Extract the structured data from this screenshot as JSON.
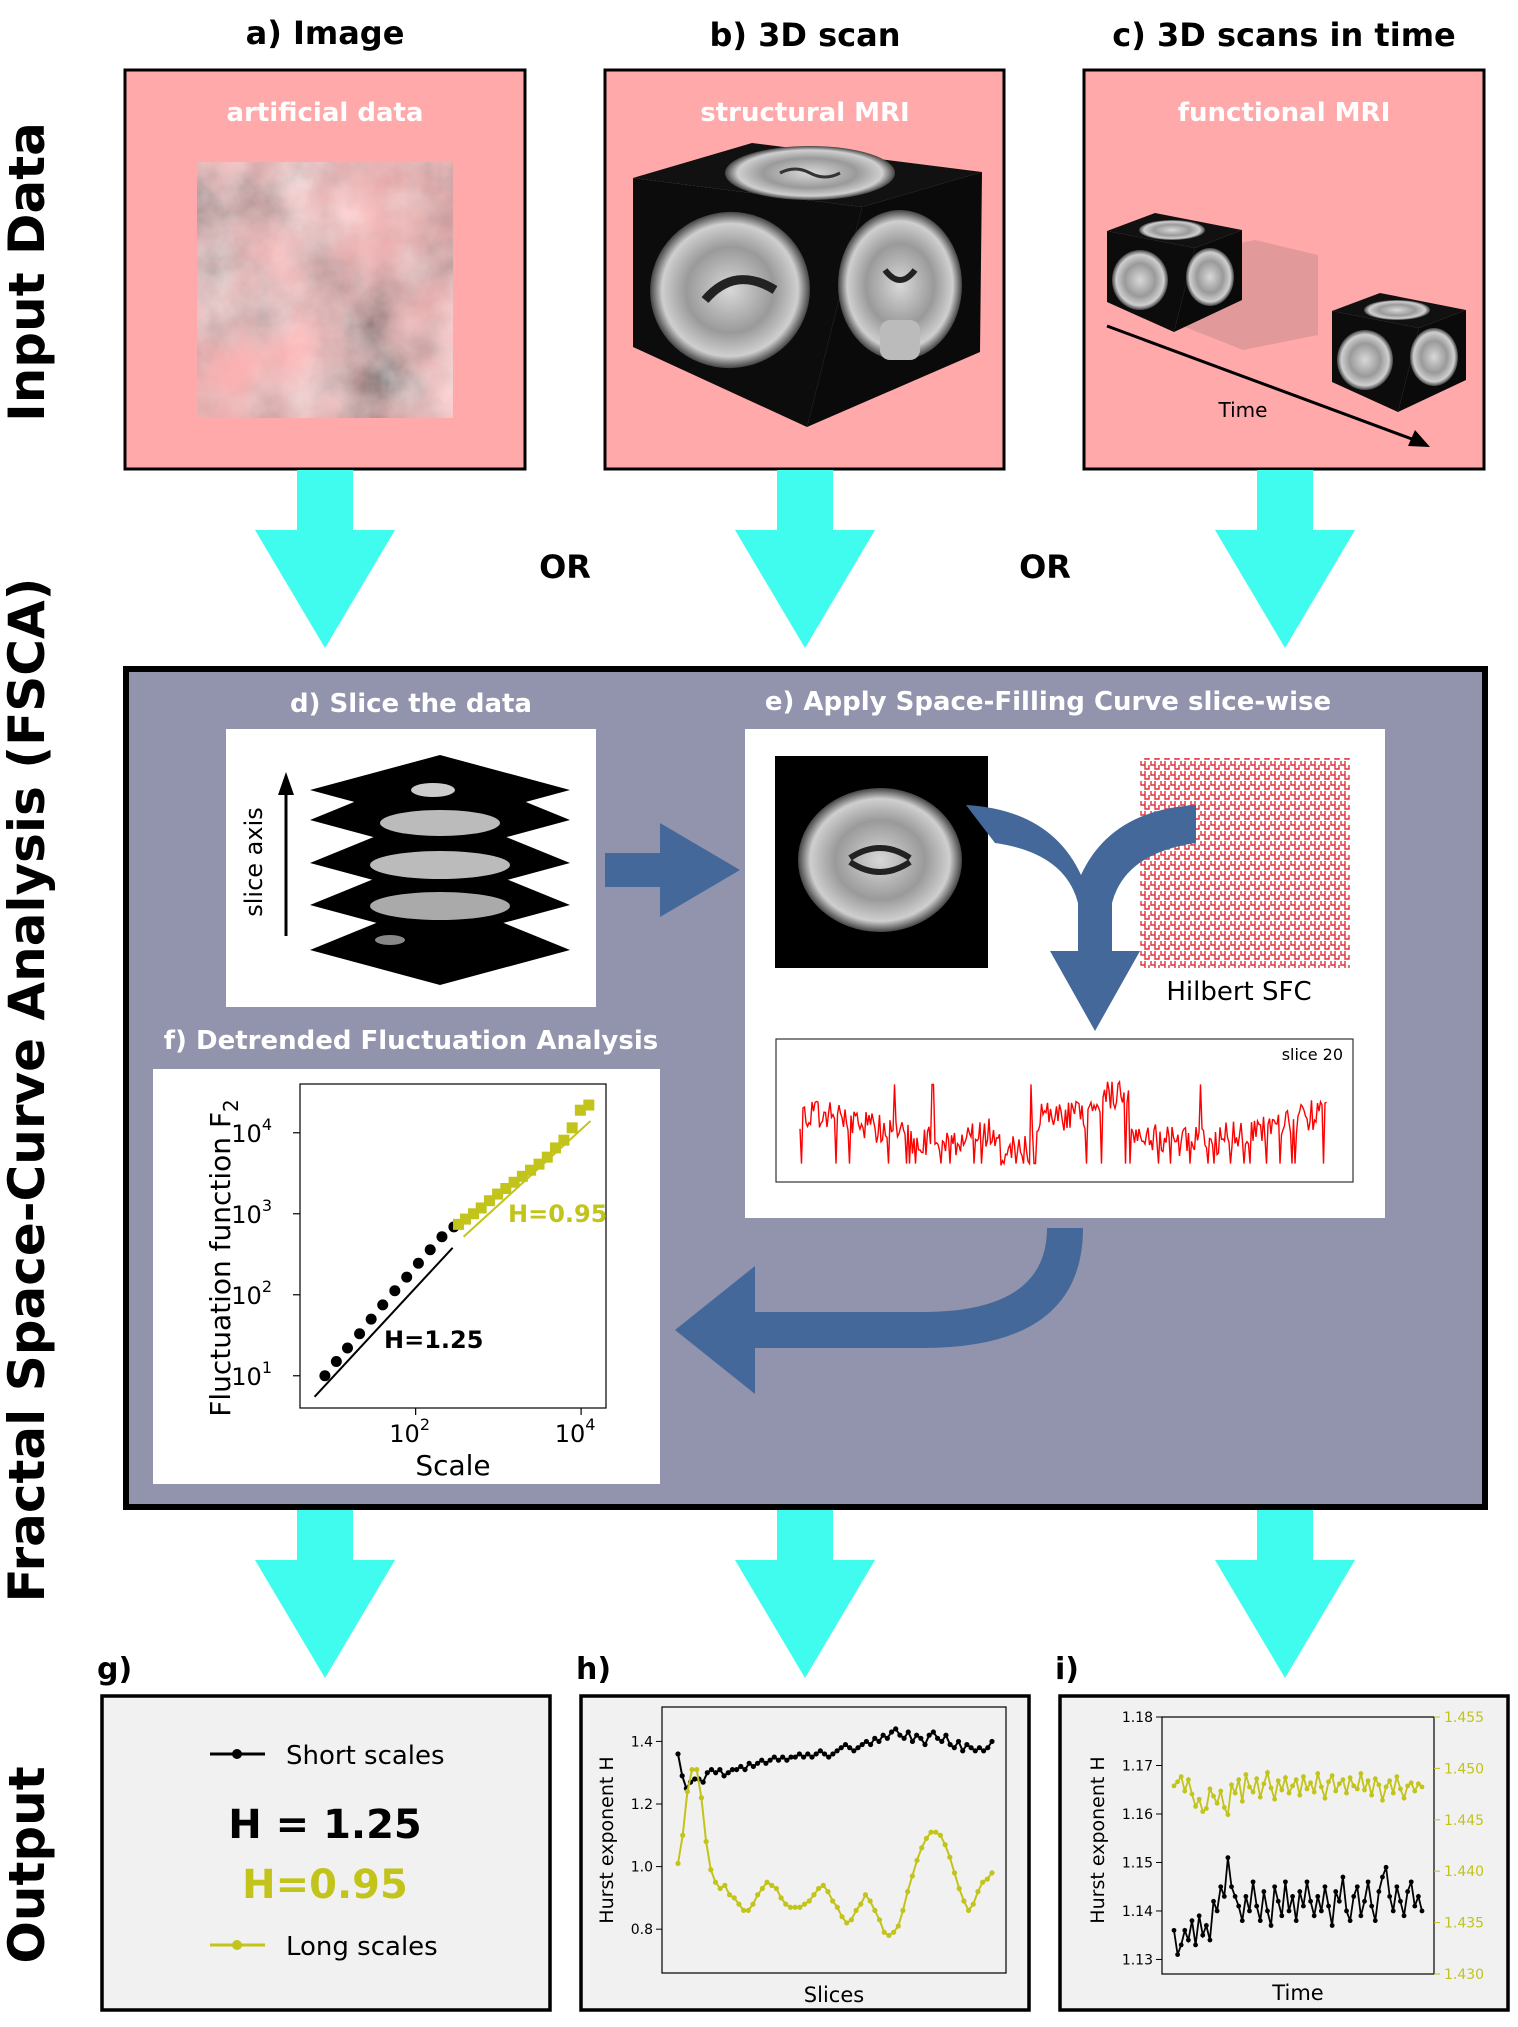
{
  "section_labels": {
    "input": "Input Data",
    "fsca": "Fractal Space-Curve Analysis (FSCA)",
    "output": "Output"
  },
  "input_panels": [
    {
      "title": "a) Image",
      "subtitle": "artificial data"
    },
    {
      "title": "b) 3D scan",
      "subtitle": "structural MRI"
    },
    {
      "title": "c) 3D scans in time",
      "subtitle": "functional MRI",
      "time_label": "Time"
    }
  ],
  "or_labels": [
    "OR",
    "OR"
  ],
  "fsca": {
    "slice_title": "d) Slice the data",
    "slice_axis_label": "slice axis",
    "sfc_title": "e) Apply Space-Filling Curve slice-wise",
    "hilbert_label": "Hilbert SFC",
    "slice_plot_label": "slice 20",
    "dfa_title": "f) Detrended Fluctuation Analysis",
    "dfa_ylabel": "Fluctuation function F",
    "dfa_ylabel_sub": "2",
    "dfa_xlabel": "Scale",
    "dfa_yticks": [
      {
        "base": "10",
        "exp": "1",
        "v": 1
      },
      {
        "base": "10",
        "exp": "2",
        "v": 2
      },
      {
        "base": "10",
        "exp": "3",
        "v": 3
      },
      {
        "base": "10",
        "exp": "4",
        "v": 4
      }
    ],
    "dfa_xticks": [
      {
        "base": "10",
        "exp": "2",
        "v": 2
      },
      {
        "base": "10",
        "exp": "4",
        "v": 4
      }
    ],
    "h_short_label": "H=1.25",
    "h_long_label": "H=0.95"
  },
  "output": {
    "g": {
      "title": "g)",
      "short_label": "Short scales",
      "h_short": "H = 1.25",
      "h_long": "H=0.95",
      "long_label": "Long scales"
    },
    "h": {
      "title": "h)",
      "ylabel": "Hurst exponent H",
      "xlabel": "Slices",
      "yticks": [
        "0.8",
        "1.0",
        "1.2",
        "1.4"
      ]
    },
    "i": {
      "title": "i)",
      "ylabel": "Hurst exponent H",
      "xlabel": "Time",
      "yticks_left": [
        "1.13",
        "1.14",
        "1.15",
        "1.16",
        "1.17",
        "1.18"
      ],
      "yticks_right": [
        "1.430",
        "1.435",
        "1.440",
        "1.445",
        "1.450",
        "1.455"
      ]
    }
  },
  "colors": {
    "input_bg": "#ffa9aa",
    "fsca_bg": "#9294ad",
    "arrow": "#3ffcef",
    "flow_arrow": "#45689a",
    "short": "#000000",
    "long": "#c2c41b",
    "output_bg": "#f1f1f1",
    "signal": "#ff0000"
  },
  "chart_data": [
    {
      "type": "scatter",
      "name": "f) Detrended Fluctuation Analysis",
      "x_scale": "log",
      "y_scale": "log",
      "xlabel": "Scale",
      "ylabel": "Fluctuation function F2",
      "xlim": [
        4,
        20000
      ],
      "ylim": [
        4,
        40000
      ],
      "series": [
        {
          "name": "short",
          "x": [
            8,
            11,
            15,
            21,
            29,
            40,
            56,
            78,
            108,
            150,
            208,
            290
          ],
          "y": [
            10,
            15,
            22,
            33,
            50,
            75,
            112,
            165,
            245,
            360,
            520,
            690
          ]
        },
        {
          "name": "long",
          "x": [
            330,
            400,
            500,
            620,
            780,
            980,
            1230,
            1550,
            1950,
            2450,
            3100,
            3900,
            4900,
            6200,
            7800,
            9800,
            12400
          ],
          "y": [
            740,
            860,
            1000,
            1180,
            1450,
            1750,
            2050,
            2450,
            2900,
            3450,
            4100,
            5000,
            6500,
            8100,
            11500,
            19000,
            22000
          ]
        }
      ]
    },
    {
      "type": "line",
      "name": "h)",
      "xlabel": "Slices",
      "ylabel": "Hurst exponent H",
      "ylim": [
        0.66,
        1.51
      ],
      "series": [
        {
          "name": "Short scales",
          "values": [
            1.36,
            1.29,
            1.25,
            1.27,
            1.28,
            1.28,
            1.27,
            1.3,
            1.31,
            1.3,
            1.31,
            1.29,
            1.3,
            1.31,
            1.31,
            1.32,
            1.31,
            1.33,
            1.32,
            1.33,
            1.34,
            1.33,
            1.34,
            1.35,
            1.34,
            1.35,
            1.34,
            1.35,
            1.35,
            1.36,
            1.35,
            1.36,
            1.35,
            1.36,
            1.37,
            1.36,
            1.35,
            1.36,
            1.37,
            1.38,
            1.39,
            1.38,
            1.37,
            1.38,
            1.39,
            1.4,
            1.39,
            1.41,
            1.4,
            1.42,
            1.41,
            1.43,
            1.44,
            1.42,
            1.41,
            1.43,
            1.4,
            1.42,
            1.41,
            1.39,
            1.42,
            1.43,
            1.41,
            1.4,
            1.42,
            1.39,
            1.38,
            1.4,
            1.37,
            1.39,
            1.38,
            1.37,
            1.38,
            1.37,
            1.38,
            1.4
          ]
        },
        {
          "name": "Long scales",
          "values": [
            1.01,
            1.1,
            1.24,
            1.31,
            1.31,
            1.22,
            1.08,
            0.99,
            0.95,
            0.93,
            0.94,
            0.91,
            0.9,
            0.88,
            0.86,
            0.86,
            0.88,
            0.91,
            0.93,
            0.95,
            0.94,
            0.93,
            0.9,
            0.88,
            0.87,
            0.87,
            0.87,
            0.88,
            0.89,
            0.91,
            0.93,
            0.94,
            0.92,
            0.89,
            0.87,
            0.84,
            0.82,
            0.83,
            0.86,
            0.88,
            0.91,
            0.89,
            0.86,
            0.83,
            0.79,
            0.78,
            0.79,
            0.81,
            0.86,
            0.92,
            0.97,
            1.02,
            1.06,
            1.09,
            1.11,
            1.11,
            1.1,
            1.07,
            1.03,
            0.98,
            0.93,
            0.89,
            0.86,
            0.88,
            0.92,
            0.95,
            0.96,
            0.98
          ]
        }
      ]
    },
    {
      "type": "line",
      "name": "i)",
      "xlabel": "Time",
      "ylabel": "Hurst exponent H",
      "ylim_left": [
        1.127,
        1.18
      ],
      "ylim_right": [
        1.43,
        1.455
      ],
      "series": [
        {
          "name": "Short scales",
          "axis": "left",
          "values": [
            1.136,
            1.131,
            1.133,
            1.136,
            1.134,
            1.138,
            1.133,
            1.139,
            1.135,
            1.137,
            1.134,
            1.142,
            1.14,
            1.145,
            1.143,
            1.151,
            1.145,
            1.143,
            1.141,
            1.138,
            1.143,
            1.14,
            1.146,
            1.141,
            1.138,
            1.144,
            1.14,
            1.137,
            1.145,
            1.142,
            1.139,
            1.146,
            1.14,
            1.143,
            1.138,
            1.144,
            1.141,
            1.146,
            1.142,
            1.139,
            1.143,
            1.14,
            1.145,
            1.141,
            1.137,
            1.144,
            1.142,
            1.147,
            1.14,
            1.138,
            1.143,
            1.145,
            1.139,
            1.142,
            1.146,
            1.141,
            1.138,
            1.144,
            1.147,
            1.149,
            1.143,
            1.14,
            1.145,
            1.142,
            1.139,
            1.144,
            1.146,
            1.141,
            1.143,
            1.14
          ]
        },
        {
          "name": "Long scales",
          "axis": "right",
          "values": [
            1.4483,
            1.4487,
            1.4492,
            1.4478,
            1.4489,
            1.4475,
            1.4463,
            1.447,
            1.4458,
            1.4461,
            1.448,
            1.4473,
            1.4466,
            1.4478,
            1.4462,
            1.4455,
            1.4484,
            1.4476,
            1.4489,
            1.4468,
            1.4494,
            1.4482,
            1.4477,
            1.449,
            1.4472,
            1.4485,
            1.4496,
            1.4481,
            1.447,
            1.4488,
            1.4479,
            1.4491,
            1.4476,
            1.4483,
            1.4489,
            1.4474,
            1.4492,
            1.448,
            1.4486,
            1.4477,
            1.4495,
            1.4482,
            1.4471,
            1.4487,
            1.4493,
            1.4478,
            1.4485,
            1.4489,
            1.4476,
            1.4491,
            1.4483,
            1.448,
            1.4495,
            1.4479,
            1.4488,
            1.4474,
            1.449,
            1.4484,
            1.4469,
            1.4482,
            1.4488,
            1.4476,
            1.4492,
            1.448,
            1.4471,
            1.4483,
            1.4486,
            1.4478,
            1.4485,
            1.4482
          ]
        }
      ]
    }
  ]
}
